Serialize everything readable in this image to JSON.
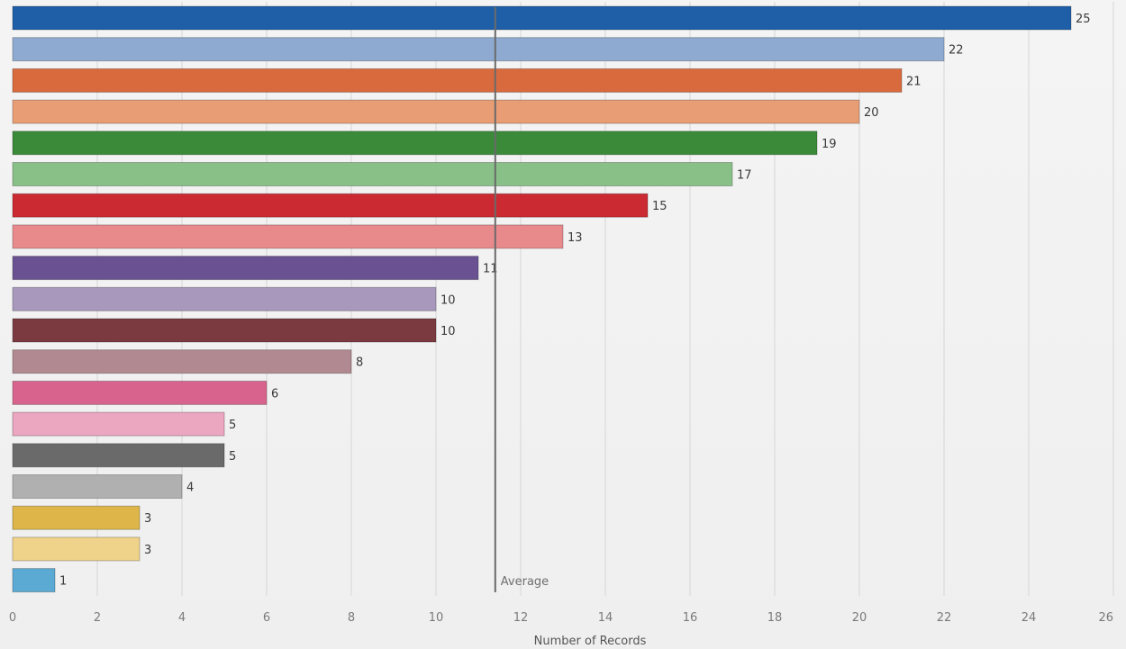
{
  "chart_data": {
    "type": "bar",
    "orientation": "horizontal",
    "title": "",
    "xlabel": "Number of Records",
    "ylabel": "",
    "xlim": [
      0,
      26
    ],
    "xticks": [
      0,
      2,
      4,
      6,
      8,
      10,
      12,
      14,
      16,
      18,
      20,
      22,
      24,
      26
    ],
    "grid": true,
    "values": [
      25,
      22,
      21,
      20,
      19,
      17,
      15,
      13,
      11,
      10,
      10,
      8,
      6,
      5,
      5,
      4,
      3,
      3,
      1
    ],
    "colors": [
      "#1f5fa8",
      "#8eaad0",
      "#d86a3e",
      "#e89d74",
      "#3a8a3a",
      "#88c088",
      "#cc2a32",
      "#e88a8c",
      "#6a5292",
      "#a898bc",
      "#7a3a40",
      "#b08a90",
      "#d8648e",
      "#eba6c0",
      "#6a6a6a",
      "#b0b0b0",
      "#ddb548",
      "#f0d38a",
      "#5aaad4"
    ],
    "reference_line": {
      "label": "Average",
      "value": 11.4
    }
  }
}
